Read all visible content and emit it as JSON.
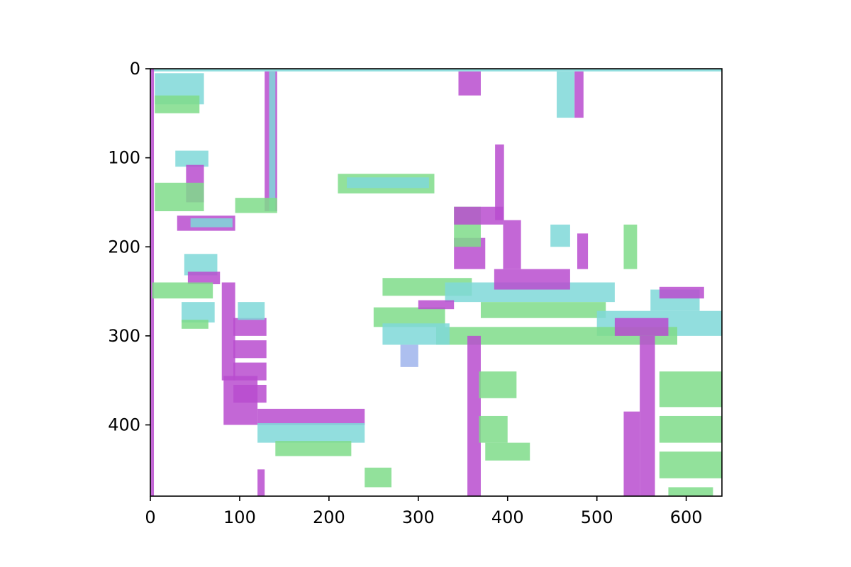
{
  "chart_data": {
    "type": "heatmap",
    "title": "",
    "xlabel": "",
    "ylabel": "",
    "xlim": [
      0,
      640
    ],
    "ylim": [
      480,
      0
    ],
    "y_axis_inverted": true,
    "grid": false,
    "legend": "none",
    "x_ticks": [
      0,
      100,
      200,
      300,
      400,
      500,
      600
    ],
    "y_ticks": [
      0,
      100,
      200,
      300,
      400
    ],
    "x_tick_labels": [
      "0",
      "100",
      "200",
      "300",
      "400",
      "500",
      "600"
    ],
    "y_tick_labels": [
      "0",
      "100",
      "200",
      "300",
      "400"
    ],
    "palette": [
      "#b84ccf",
      "#7fd8d8",
      "#7fdc8a",
      "#9fb4ec",
      "#c98ad8"
    ],
    "regions": [
      {
        "color": "#7fd8d8",
        "rows": [
          0,
          3
        ],
        "cols": [
          0,
          640
        ]
      },
      {
        "color": "#b84ccf",
        "rows": [
          0,
          480
        ],
        "cols": [
          0,
          4
        ]
      },
      {
        "color": "#7fd8d8",
        "rows": [
          5,
          40
        ],
        "cols": [
          5,
          60
        ]
      },
      {
        "color": "#7fdc8a",
        "rows": [
          30,
          50
        ],
        "cols": [
          5,
          55
        ]
      },
      {
        "color": "#7fd8d8",
        "rows": [
          92,
          110
        ],
        "cols": [
          28,
          65
        ]
      },
      {
        "color": "#b84ccf",
        "rows": [
          108,
          150
        ],
        "cols": [
          40,
          60
        ]
      },
      {
        "color": "#7fdc8a",
        "rows": [
          128,
          160
        ],
        "cols": [
          5,
          60
        ]
      },
      {
        "color": "#b84ccf",
        "rows": [
          165,
          182
        ],
        "cols": [
          30,
          95
        ]
      },
      {
        "color": "#7fd8d8",
        "rows": [
          168,
          178
        ],
        "cols": [
          45,
          92
        ]
      },
      {
        "color": "#b84ccf",
        "rows": [
          3,
          160
        ],
        "cols": [
          128,
          142
        ]
      },
      {
        "color": "#7fd8d8",
        "rows": [
          3,
          160
        ],
        "cols": [
          133,
          140
        ]
      },
      {
        "color": "#7fdc8a",
        "rows": [
          145,
          162
        ],
        "cols": [
          95,
          142
        ]
      },
      {
        "color": "#7fdc8a",
        "rows": [
          118,
          140
        ],
        "cols": [
          210,
          318
        ]
      },
      {
        "color": "#7fd8d8",
        "rows": [
          122,
          134
        ],
        "cols": [
          220,
          312
        ]
      },
      {
        "color": "#7fd8d8",
        "rows": [
          208,
          232
        ],
        "cols": [
          38,
          75
        ]
      },
      {
        "color": "#b84ccf",
        "rows": [
          228,
          242
        ],
        "cols": [
          42,
          78
        ]
      },
      {
        "color": "#7fdc8a",
        "rows": [
          240,
          258
        ],
        "cols": [
          2,
          70
        ]
      },
      {
        "color": "#7fd8d8",
        "rows": [
          262,
          285
        ],
        "cols": [
          35,
          72
        ]
      },
      {
        "color": "#7fdc8a",
        "rows": [
          282,
          292
        ],
        "cols": [
          35,
          65
        ]
      },
      {
        "color": "#b84ccf",
        "rows": [
          240,
          350
        ],
        "cols": [
          80,
          95
        ]
      },
      {
        "color": "#b84ccf",
        "rows": [
          280,
          300
        ],
        "cols": [
          93,
          130
        ]
      },
      {
        "color": "#b84ccf",
        "rows": [
          305,
          325
        ],
        "cols": [
          93,
          130
        ]
      },
      {
        "color": "#b84ccf",
        "rows": [
          330,
          350
        ],
        "cols": [
          93,
          130
        ]
      },
      {
        "color": "#b84ccf",
        "rows": [
          355,
          375
        ],
        "cols": [
          93,
          130
        ]
      },
      {
        "color": "#7fd8d8",
        "rows": [
          262,
          282
        ],
        "cols": [
          98,
          128
        ]
      },
      {
        "color": "#b84ccf",
        "rows": [
          345,
          400
        ],
        "cols": [
          82,
          120
        ]
      },
      {
        "color": "#b84ccf",
        "rows": [
          382,
          400
        ],
        "cols": [
          120,
          240
        ]
      },
      {
        "color": "#7fd8d8",
        "rows": [
          398,
          420
        ],
        "cols": [
          120,
          240
        ]
      },
      {
        "color": "#7fdc8a",
        "rows": [
          418,
          435
        ],
        "cols": [
          140,
          225
        ]
      },
      {
        "color": "#7fdc8a",
        "rows": [
          235,
          255
        ],
        "cols": [
          260,
          360
        ]
      },
      {
        "color": "#7fd8d8",
        "rows": [
          240,
          262
        ],
        "cols": [
          330,
          520
        ]
      },
      {
        "color": "#b84ccf",
        "rows": [
          225,
          248
        ],
        "cols": [
          385,
          470
        ]
      },
      {
        "color": "#7fdc8a",
        "rows": [
          262,
          280
        ],
        "cols": [
          370,
          510
        ]
      },
      {
        "color": "#7fd8d8",
        "rows": [
          272,
          300
        ],
        "cols": [
          500,
          640
        ]
      },
      {
        "color": "#7fdc8a",
        "rows": [
          290,
          310
        ],
        "cols": [
          320,
          590
        ]
      },
      {
        "color": "#7fdc8a",
        "rows": [
          268,
          290
        ],
        "cols": [
          250,
          330
        ]
      },
      {
        "color": "#b84ccf",
        "rows": [
          280,
          300
        ],
        "cols": [
          520,
          580
        ]
      },
      {
        "color": "#7fd8d8",
        "rows": [
          248,
          272
        ],
        "cols": [
          560,
          615
        ]
      },
      {
        "color": "#b84ccf",
        "rows": [
          245,
          258
        ],
        "cols": [
          570,
          620
        ]
      },
      {
        "color": "#7fd8d8",
        "rows": [
          286,
          310
        ],
        "cols": [
          260,
          335
        ]
      },
      {
        "color": "#b84ccf",
        "rows": [
          190,
          225
        ],
        "cols": [
          340,
          375
        ]
      },
      {
        "color": "#7fdc8a",
        "rows": [
          155,
          200
        ],
        "cols": [
          340,
          370
        ]
      },
      {
        "color": "#b84ccf",
        "rows": [
          155,
          175
        ],
        "cols": [
          340,
          395
        ]
      },
      {
        "color": "#b84ccf",
        "rows": [
          85,
          170
        ],
        "cols": [
          386,
          396
        ]
      },
      {
        "color": "#b84ccf",
        "rows": [
          170,
          225
        ],
        "cols": [
          395,
          415
        ]
      },
      {
        "color": "#7fd8d8",
        "rows": [
          175,
          200
        ],
        "cols": [
          448,
          470
        ]
      },
      {
        "color": "#b84ccf",
        "rows": [
          185,
          225
        ],
        "cols": [
          478,
          490
        ]
      },
      {
        "color": "#7fdc8a",
        "rows": [
          175,
          225
        ],
        "cols": [
          530,
          545
        ]
      },
      {
        "color": "#7fd8d8",
        "rows": [
          3,
          55
        ],
        "cols": [
          455,
          475
        ]
      },
      {
        "color": "#b84ccf",
        "rows": [
          3,
          55
        ],
        "cols": [
          475,
          485
        ]
      },
      {
        "color": "#b84ccf",
        "rows": [
          3,
          30
        ],
        "cols": [
          345,
          370
        ]
      },
      {
        "color": "#b84ccf",
        "rows": [
          300,
          480
        ],
        "cols": [
          355,
          370
        ]
      },
      {
        "color": "#7fdc8a",
        "rows": [
          340,
          370
        ],
        "cols": [
          368,
          410
        ]
      },
      {
        "color": "#7fdc8a",
        "rows": [
          390,
          420
        ],
        "cols": [
          368,
          400
        ]
      },
      {
        "color": "#7fdc8a",
        "rows": [
          420,
          440
        ],
        "cols": [
          375,
          425
        ]
      },
      {
        "color": "#b84ccf",
        "rows": [
          300,
          480
        ],
        "cols": [
          548,
          565
        ]
      },
      {
        "color": "#7fdc8a",
        "rows": [
          340,
          380
        ],
        "cols": [
          570,
          640
        ]
      },
      {
        "color": "#7fdc8a",
        "rows": [
          390,
          420
        ],
        "cols": [
          570,
          640
        ]
      },
      {
        "color": "#7fdc8a",
        "rows": [
          430,
          460
        ],
        "cols": [
          570,
          640
        ]
      },
      {
        "color": "#b84ccf",
        "rows": [
          385,
          480
        ],
        "cols": [
          530,
          548
        ]
      },
      {
        "color": "#b84ccf",
        "rows": [
          260,
          270
        ],
        "cols": [
          300,
          340
        ]
      },
      {
        "color": "#9fb4ec",
        "rows": [
          310,
          335
        ],
        "cols": [
          280,
          300
        ]
      },
      {
        "color": "#7fdc8a",
        "rows": [
          448,
          470
        ],
        "cols": [
          240,
          270
        ]
      },
      {
        "color": "#b84ccf",
        "rows": [
          450,
          480
        ],
        "cols": [
          120,
          128
        ]
      },
      {
        "color": "#7fdc8a",
        "rows": [
          470,
          480
        ],
        "cols": [
          580,
          630
        ]
      }
    ]
  }
}
